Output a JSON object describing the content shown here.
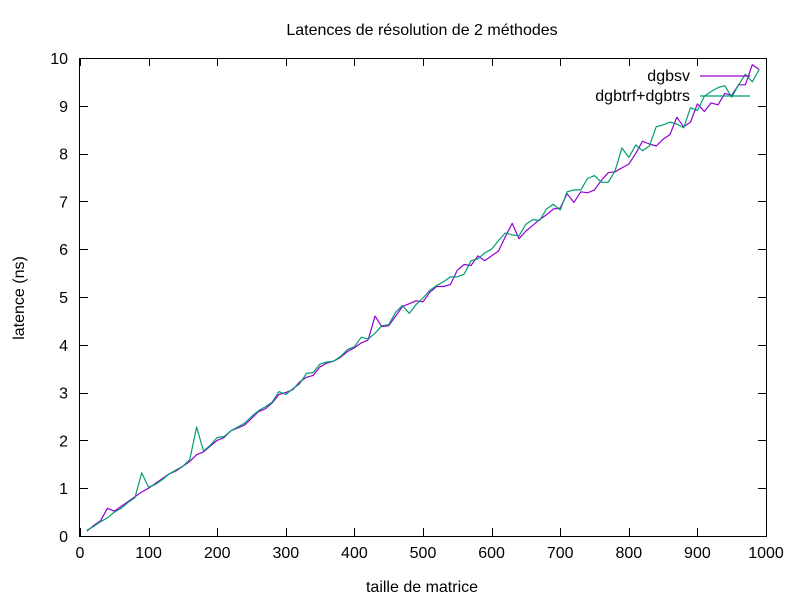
{
  "chart_data": {
    "type": "line",
    "title": "Latences de résolution de 2 méthodes",
    "xlabel": "taille de matrice",
    "ylabel": "latence (ns)",
    "xlim": [
      0,
      1000
    ],
    "ylim": [
      0,
      10
    ],
    "xticks": [
      0,
      100,
      200,
      300,
      400,
      500,
      600,
      700,
      800,
      900,
      1000
    ],
    "yticks": [
      0,
      1,
      2,
      3,
      4,
      5,
      6,
      7,
      8,
      9,
      10
    ],
    "grid": false,
    "legend_position": "top-right",
    "x": [
      10,
      20,
      30,
      40,
      50,
      60,
      70,
      80,
      90,
      100,
      110,
      120,
      130,
      140,
      150,
      160,
      170,
      180,
      190,
      200,
      210,
      220,
      230,
      240,
      250,
      260,
      270,
      280,
      290,
      300,
      310,
      320,
      330,
      340,
      350,
      360,
      370,
      380,
      390,
      400,
      410,
      420,
      430,
      440,
      450,
      460,
      470,
      480,
      490,
      500,
      510,
      520,
      530,
      540,
      550,
      560,
      570,
      580,
      590,
      600,
      610,
      620,
      630,
      640,
      650,
      660,
      670,
      680,
      690,
      700,
      710,
      720,
      730,
      740,
      750,
      760,
      770,
      780,
      790,
      800,
      810,
      820,
      830,
      840,
      850,
      860,
      870,
      880,
      890,
      900,
      910,
      920,
      930,
      940,
      950,
      960,
      970,
      980,
      990
    ],
    "series": [
      {
        "name": "dgbsv",
        "color": "#9400d3",
        "values": [
          0.1,
          0.22,
          0.32,
          0.58,
          0.52,
          0.62,
          0.72,
          0.82,
          0.92,
          1.0,
          1.1,
          1.2,
          1.3,
          1.36,
          1.46,
          1.56,
          1.7,
          1.76,
          1.88,
          2.0,
          2.06,
          2.2,
          2.26,
          2.32,
          2.46,
          2.6,
          2.66,
          2.78,
          2.96,
          3.0,
          3.06,
          3.22,
          3.32,
          3.36,
          3.54,
          3.62,
          3.66,
          3.74,
          3.86,
          3.94,
          4.04,
          4.1,
          4.6,
          4.38,
          4.4,
          4.6,
          4.8,
          4.86,
          4.92,
          4.9,
          5.1,
          5.22,
          5.22,
          5.26,
          5.56,
          5.68,
          5.66,
          5.86,
          5.76,
          5.86,
          5.96,
          6.26,
          6.54,
          6.22,
          6.38,
          6.5,
          6.62,
          6.72,
          6.84,
          6.86,
          7.16,
          6.98,
          7.2,
          7.18,
          7.24,
          7.44,
          7.6,
          7.62,
          7.7,
          7.78,
          8.0,
          8.26,
          8.2,
          8.16,
          8.3,
          8.4,
          8.76,
          8.56,
          8.66,
          9.04,
          8.88,
          9.06,
          9.02,
          9.26,
          9.22,
          9.44,
          9.44,
          9.86,
          9.76
        ]
      },
      {
        "name": "dgbtrf+dgbtrs",
        "color": "#009e73",
        "values": [
          0.12,
          0.2,
          0.3,
          0.38,
          0.5,
          0.58,
          0.7,
          0.8,
          1.32,
          1.02,
          1.08,
          1.18,
          1.3,
          1.38,
          1.46,
          1.6,
          2.28,
          1.78,
          1.9,
          2.06,
          2.08,
          2.2,
          2.28,
          2.36,
          2.5,
          2.62,
          2.7,
          2.8,
          3.02,
          2.96,
          3.08,
          3.18,
          3.4,
          3.42,
          3.6,
          3.64,
          3.66,
          3.76,
          3.9,
          3.96,
          4.16,
          4.12,
          4.24,
          4.4,
          4.42,
          4.68,
          4.82,
          4.66,
          4.84,
          4.98,
          5.14,
          5.24,
          5.32,
          5.42,
          5.42,
          5.48,
          5.76,
          5.8,
          5.92,
          6.0,
          6.18,
          6.34,
          6.3,
          6.28,
          6.52,
          6.62,
          6.6,
          6.84,
          6.94,
          6.82,
          7.2,
          7.24,
          7.24,
          7.48,
          7.54,
          7.4,
          7.4,
          7.64,
          8.12,
          7.92,
          8.18,
          8.06,
          8.16,
          8.56,
          8.6,
          8.66,
          8.62,
          8.54,
          8.96,
          8.9,
          9.2,
          9.3,
          9.38,
          9.42,
          9.18,
          9.44,
          9.66,
          9.5,
          9.76
        ]
      }
    ]
  }
}
